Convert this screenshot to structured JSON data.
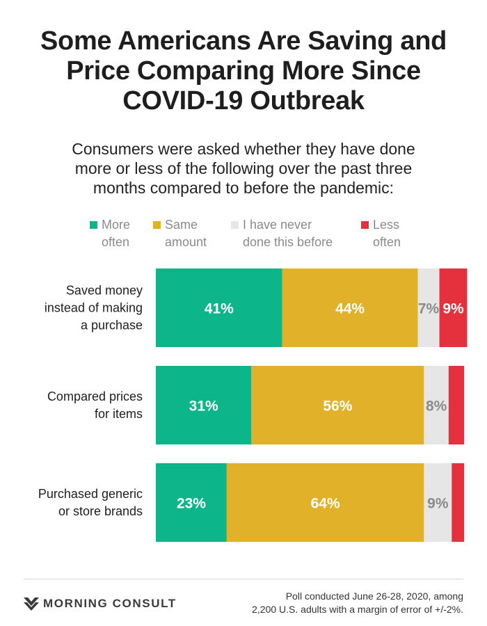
{
  "header": {
    "title_lines": [
      "Some Americans Are Saving and",
      "Price Comparing More Since",
      "COVID-19 Outbreak"
    ],
    "subtitle_lines": [
      "Consumers were asked whether they have done",
      "more or less of the following over the past three",
      "months compared to before the pandemic:"
    ]
  },
  "legend": [
    {
      "lines": [
        "More",
        "often"
      ],
      "color": "#0db58a"
    },
    {
      "lines": [
        "Same",
        "amount"
      ],
      "color": "#e1b12a"
    },
    {
      "lines": [
        "I have never",
        "done this before"
      ],
      "color": "#e6e6e6"
    },
    {
      "lines": [
        "Less",
        "often"
      ],
      "color": "#e4313d"
    }
  ],
  "chart_data": {
    "type": "bar",
    "orientation": "horizontal",
    "stacked": true,
    "categories": [
      "Saved money instead of making a purchase",
      "Compared prices for items",
      "Purchased generic or store brands"
    ],
    "category_label_lines": [
      [
        "Saved money",
        "instead of making",
        "a purchase"
      ],
      [
        "Compared prices",
        "for items"
      ],
      [
        "Purchased generic",
        "or store brands"
      ]
    ],
    "series": [
      {
        "name": "More often",
        "color": "#0db58a",
        "values": [
          41,
          31,
          23
        ],
        "labels": [
          "41%",
          "31%",
          "23%"
        ]
      },
      {
        "name": "Same amount",
        "color": "#e1b12a",
        "values": [
          44,
          56,
          64
        ],
        "labels": [
          "44%",
          "56%",
          "64%"
        ]
      },
      {
        "name": "I have never done this before",
        "color": "#e6e6e6",
        "values": [
          7,
          8,
          9
        ],
        "labels": [
          "7%",
          "8%",
          "9%"
        ]
      },
      {
        "name": "Less often",
        "color": "#e4313d",
        "values": [
          9,
          5,
          4
        ],
        "labels": [
          "9%",
          "",
          ""
        ]
      }
    ],
    "xlim": [
      0,
      100
    ],
    "grid": false,
    "legend_position": "top"
  },
  "footer": {
    "brand": "MORNING CONSULT",
    "note_lines": [
      "Poll conducted June 26-28, 2020, among",
      "2,200 U.S. adults with a margin of error of +/-2%."
    ]
  }
}
